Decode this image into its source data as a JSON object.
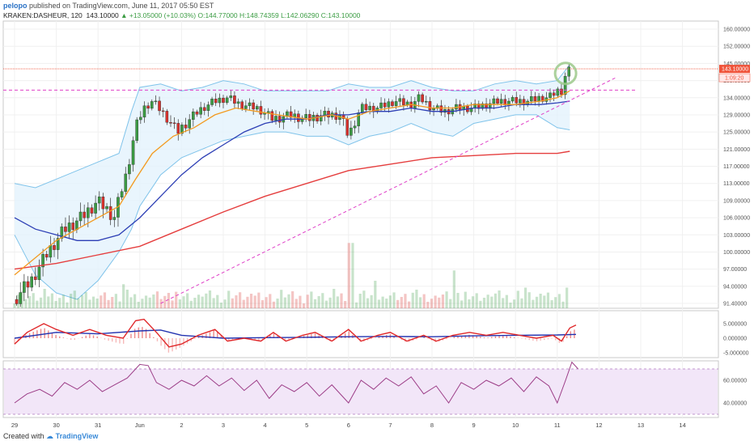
{
  "header": {
    "author": "pelopo",
    "published_text": "published on TradingView.com, June 11, 2017 05:50 EST",
    "symbol": "KRAKEN:DASHEUR, 120",
    "last": "143.10000",
    "change": "▲ +13.05000 (+10.03%)",
    "open": "O:144.77000",
    "high": "H:148.74359",
    "low": "L:142.06290",
    "close": "C:143.10000"
  },
  "footer": {
    "created_with": "Created with",
    "brand": "TradingView"
  },
  "colors": {
    "up": "#3b9c43",
    "down": "#d9302c",
    "bollinger": "#7fc3ea",
    "bollinger_fill": "#e3f2fc",
    "ema_fast": "#f39a1f",
    "ema_mid": "#2d3fb5",
    "ema_slow": "#e53e3e",
    "trendline": "#e040c8",
    "macd": "#e0282a",
    "macd_signal": "#2233b0",
    "rsi": "#9c3d87",
    "rsi_fill": "#f2e6f8",
    "price_label": "#f0533a",
    "timer_label": "#ffe8e8"
  },
  "chart_data": [
    {
      "type": "candlestick",
      "title": "KRAKEN:DASHEUR, 120",
      "y_ticks": [
        "160.00000",
        "152.00000",
        "145.00000",
        "139.00000",
        "134.00000",
        "129.00000",
        "125.00000",
        "121.00000",
        "117.00000",
        "113.00000",
        "109.00000",
        "106.00000",
        "103.00000",
        "100.00000",
        "97.00000",
        "94.00000",
        "91.40000"
      ],
      "y_tick_values": [
        160,
        152,
        145,
        139,
        134,
        129,
        125,
        121,
        117,
        113,
        109,
        106,
        103,
        100,
        97,
        94,
        91.4
      ],
      "x_ticks": [
        "29",
        "30",
        "31",
        "Jun",
        "2",
        "3",
        "4",
        "5",
        "6",
        "7",
        "8",
        "9",
        "10",
        "11",
        "12",
        "13",
        "14"
      ],
      "x_tick_days": [
        0,
        1,
        2,
        3,
        4,
        5,
        6,
        7,
        8,
        9,
        10,
        11,
        12,
        13,
        14,
        15,
        16
      ],
      "last_price_label": "143.10000",
      "timer_label": "1:09:20",
      "horizontal_levels": [
        143.1,
        136.2
      ],
      "trendline": [
        [
          3.5,
          91.4
        ],
        [
          14.4,
          140.0
        ]
      ],
      "close_path": [
        [
          0,
          92
        ],
        [
          0.4,
          95
        ],
        [
          0.8,
          100
        ],
        [
          1.2,
          104
        ],
        [
          1.6,
          106
        ],
        [
          2.0,
          109
        ],
        [
          2.4,
          106
        ],
        [
          2.7,
          116
        ],
        [
          2.9,
          126
        ],
        [
          3.1,
          131
        ],
        [
          3.3,
          133
        ],
        [
          3.6,
          129
        ],
        [
          3.9,
          125
        ],
        [
          4.2,
          128
        ],
        [
          4.5,
          131
        ],
        [
          4.8,
          133
        ],
        [
          5.1,
          134
        ],
        [
          5.4,
          132
        ],
        [
          5.8,
          131
        ],
        [
          6.2,
          128
        ],
        [
          6.6,
          129
        ],
        [
          7.0,
          128
        ],
        [
          7.4,
          129
        ],
        [
          7.8,
          129
        ],
        [
          8.0,
          124
        ],
        [
          8.3,
          131
        ],
        [
          8.7,
          131
        ],
        [
          9.1,
          133
        ],
        [
          9.5,
          132
        ],
        [
          9.7,
          134
        ],
        [
          10.0,
          131
        ],
        [
          10.3,
          130
        ],
        [
          10.6,
          131
        ],
        [
          11.0,
          131
        ],
        [
          11.3,
          132
        ],
        [
          11.6,
          133
        ],
        [
          12.0,
          133
        ],
        [
          12.3,
          133
        ],
        [
          12.6,
          134
        ],
        [
          12.8,
          134
        ],
        [
          13.0,
          136
        ],
        [
          13.1,
          136
        ],
        [
          13.2,
          141
        ],
        [
          13.3,
          143.1
        ]
      ],
      "bollinger_upper": [
        [
          0,
          113
        ],
        [
          0.5,
          112
        ],
        [
          1.0,
          114
        ],
        [
          1.5,
          116
        ],
        [
          2.0,
          118
        ],
        [
          2.5,
          120
        ],
        [
          2.8,
          130
        ],
        [
          3.0,
          137
        ],
        [
          3.5,
          138
        ],
        [
          4.0,
          136
        ],
        [
          4.5,
          137
        ],
        [
          5.0,
          139
        ],
        [
          5.5,
          138
        ],
        [
          6.0,
          136
        ],
        [
          6.5,
          136
        ],
        [
          7.0,
          136
        ],
        [
          7.5,
          136
        ],
        [
          8.0,
          138
        ],
        [
          8.5,
          137
        ],
        [
          9.0,
          137
        ],
        [
          9.5,
          139
        ],
        [
          10.0,
          137
        ],
        [
          10.5,
          136
        ],
        [
          11.0,
          136
        ],
        [
          11.5,
          138
        ],
        [
          12.0,
          139
        ],
        [
          12.5,
          138
        ],
        [
          13.0,
          139
        ],
        [
          13.3,
          144.5
        ]
      ],
      "bollinger_lower": [
        [
          0,
          103
        ],
        [
          0.5,
          96
        ],
        [
          1.0,
          93
        ],
        [
          1.5,
          92
        ],
        [
          2.0,
          95
        ],
        [
          2.5,
          100
        ],
        [
          2.8,
          104
        ],
        [
          3.0,
          108
        ],
        [
          3.5,
          115
        ],
        [
          4.0,
          119
        ],
        [
          4.5,
          121
        ],
        [
          5.0,
          123
        ],
        [
          5.5,
          124
        ],
        [
          6.0,
          125
        ],
        [
          6.5,
          125
        ],
        [
          7.0,
          124
        ],
        [
          7.5,
          124
        ],
        [
          8.0,
          122
        ],
        [
          8.5,
          124
        ],
        [
          9.0,
          125
        ],
        [
          9.5,
          127
        ],
        [
          10.0,
          125
        ],
        [
          10.5,
          124
        ],
        [
          11.0,
          127
        ],
        [
          11.5,
          128
        ],
        [
          12.0,
          129
        ],
        [
          12.5,
          129
        ],
        [
          13.0,
          126
        ],
        [
          13.3,
          125.5
        ]
      ],
      "ema_fast": [
        [
          0,
          96
        ],
        [
          1.0,
          102
        ],
        [
          2.0,
          106
        ],
        [
          2.5,
          108
        ],
        [
          2.9,
          114
        ],
        [
          3.3,
          120
        ],
        [
          3.8,
          124
        ],
        [
          4.3,
          126
        ],
        [
          4.8,
          129
        ],
        [
          5.3,
          131
        ],
        [
          5.8,
          130
        ],
        [
          6.3,
          129
        ],
        [
          7.0,
          128
        ],
        [
          7.6,
          129
        ],
        [
          8.0,
          128
        ],
        [
          8.5,
          130
        ],
        [
          9.0,
          131
        ],
        [
          9.5,
          132
        ],
        [
          10.0,
          131
        ],
        [
          10.5,
          131
        ],
        [
          11.0,
          132
        ],
        [
          11.5,
          132
        ],
        [
          12.0,
          132
        ],
        [
          12.6,
          133
        ],
        [
          13.0,
          134
        ],
        [
          13.3,
          136
        ]
      ],
      "ema_mid": [
        [
          0,
          106
        ],
        [
          0.5,
          104
        ],
        [
          1.0,
          103
        ],
        [
          1.5,
          102
        ],
        [
          2.0,
          102
        ],
        [
          2.5,
          103
        ],
        [
          3.0,
          106
        ],
        [
          3.5,
          110
        ],
        [
          4.0,
          115
        ],
        [
          4.5,
          119
        ],
        [
          5.0,
          122
        ],
        [
          5.5,
          125
        ],
        [
          6.0,
          127
        ],
        [
          6.5,
          128
        ],
        [
          7.0,
          128
        ],
        [
          7.5,
          129
        ],
        [
          8.0,
          129
        ],
        [
          8.5,
          130
        ],
        [
          9.0,
          130
        ],
        [
          9.5,
          131
        ],
        [
          10.0,
          130
        ],
        [
          10.5,
          130
        ],
        [
          11.0,
          131
        ],
        [
          11.5,
          131
        ],
        [
          12.0,
          132
        ],
        [
          12.6,
          132
        ],
        [
          13.0,
          132.5
        ],
        [
          13.3,
          133
        ]
      ],
      "ema_slow": [
        [
          0,
          97
        ],
        [
          1.0,
          98
        ],
        [
          2.0,
          99.5
        ],
        [
          3.0,
          101
        ],
        [
          4.0,
          104
        ],
        [
          5.0,
          107
        ],
        [
          6.0,
          110
        ],
        [
          7.0,
          113
        ],
        [
          8.0,
          116
        ],
        [
          9.0,
          117.5
        ],
        [
          10.0,
          119
        ],
        [
          11.0,
          119.5
        ],
        [
          12.0,
          120
        ],
        [
          13.0,
          120
        ],
        [
          13.3,
          120.5
        ]
      ],
      "volume_spikes": [
        [
          8.05,
          0.95
        ],
        [
          10.5,
          0.55
        ],
        [
          8.6,
          0.4
        ],
        [
          2.6,
          0.35
        ],
        [
          12.2,
          0.3
        ],
        [
          13.2,
          0.3
        ]
      ]
    },
    {
      "type": "line",
      "title": "MACD",
      "y_ticks": [
        "5.000000",
        "0.000000",
        "-5.000000"
      ],
      "y_tick_values": [
        5,
        0,
        -5
      ],
      "macd_path": [
        [
          0,
          -2
        ],
        [
          0.3,
          2
        ],
        [
          0.7,
          5
        ],
        [
          1.0,
          3
        ],
        [
          1.4,
          1
        ],
        [
          1.8,
          3
        ],
        [
          2.2,
          1
        ],
        [
          2.6,
          0
        ],
        [
          2.9,
          6
        ],
        [
          3.1,
          6.5
        ],
        [
          3.4,
          2
        ],
        [
          3.7,
          -3
        ],
        [
          4.0,
          -2
        ],
        [
          4.4,
          1
        ],
        [
          4.8,
          3
        ],
        [
          5.1,
          -1
        ],
        [
          5.5,
          0
        ],
        [
          5.9,
          -1
        ],
        [
          6.2,
          2
        ],
        [
          6.5,
          -1
        ],
        [
          6.9,
          1
        ],
        [
          7.2,
          2
        ],
        [
          7.6,
          -1
        ],
        [
          8.0,
          3
        ],
        [
          8.3,
          -1
        ],
        [
          8.7,
          1
        ],
        [
          9.0,
          2
        ],
        [
          9.4,
          -1
        ],
        [
          9.8,
          1
        ],
        [
          10.1,
          -1
        ],
        [
          10.5,
          1
        ],
        [
          10.9,
          2
        ],
        [
          11.3,
          1
        ],
        [
          11.7,
          2
        ],
        [
          12.1,
          1
        ],
        [
          12.5,
          0
        ],
        [
          12.9,
          1
        ],
        [
          13.1,
          -1
        ],
        [
          13.3,
          3.5
        ],
        [
          13.45,
          4.5
        ]
      ],
      "signal_path": [
        [
          0,
          0
        ],
        [
          1.0,
          2
        ],
        [
          2.0,
          1.5
        ],
        [
          3.0,
          2.5
        ],
        [
          3.5,
          2.8
        ],
        [
          4.0,
          1
        ],
        [
          5.0,
          0
        ],
        [
          6.0,
          0.2
        ],
        [
          7.0,
          0.3
        ],
        [
          8.0,
          0.5
        ],
        [
          9.0,
          0.6
        ],
        [
          10.0,
          0.5
        ],
        [
          11.0,
          0.8
        ],
        [
          12.0,
          1.0
        ],
        [
          13.0,
          1.1
        ],
        [
          13.45,
          1.3
        ]
      ]
    },
    {
      "type": "line",
      "title": "RSI",
      "y_ticks": [
        "60.00000",
        "40.00000"
      ],
      "y_tick_values": [
        60,
        40
      ],
      "band": [
        30,
        70
      ],
      "rsi_path": [
        [
          0,
          40
        ],
        [
          0.3,
          48
        ],
        [
          0.6,
          52
        ],
        [
          0.9,
          46
        ],
        [
          1.2,
          58
        ],
        [
          1.5,
          52
        ],
        [
          1.8,
          60
        ],
        [
          2.1,
          50
        ],
        [
          2.4,
          56
        ],
        [
          2.7,
          62
        ],
        [
          3.0,
          74
        ],
        [
          3.2,
          73
        ],
        [
          3.4,
          58
        ],
        [
          3.7,
          52
        ],
        [
          4.0,
          60
        ],
        [
          4.3,
          55
        ],
        [
          4.6,
          64
        ],
        [
          4.9,
          55
        ],
        [
          5.2,
          62
        ],
        [
          5.5,
          51
        ],
        [
          5.8,
          60
        ],
        [
          6.1,
          44
        ],
        [
          6.4,
          56
        ],
        [
          6.7,
          50
        ],
        [
          7.0,
          58
        ],
        [
          7.3,
          46
        ],
        [
          7.6,
          56
        ],
        [
          8.0,
          40
        ],
        [
          8.3,
          60
        ],
        [
          8.6,
          52
        ],
        [
          8.9,
          62
        ],
        [
          9.2,
          55
        ],
        [
          9.5,
          63
        ],
        [
          9.8,
          48
        ],
        [
          10.1,
          55
        ],
        [
          10.4,
          40
        ],
        [
          10.7,
          58
        ],
        [
          11.0,
          52
        ],
        [
          11.3,
          60
        ],
        [
          11.6,
          55
        ],
        [
          11.9,
          62
        ],
        [
          12.2,
          50
        ],
        [
          12.5,
          63
        ],
        [
          12.8,
          55
        ],
        [
          13.0,
          40
        ],
        [
          13.2,
          60
        ],
        [
          13.35,
          76
        ],
        [
          13.5,
          70
        ]
      ]
    }
  ]
}
